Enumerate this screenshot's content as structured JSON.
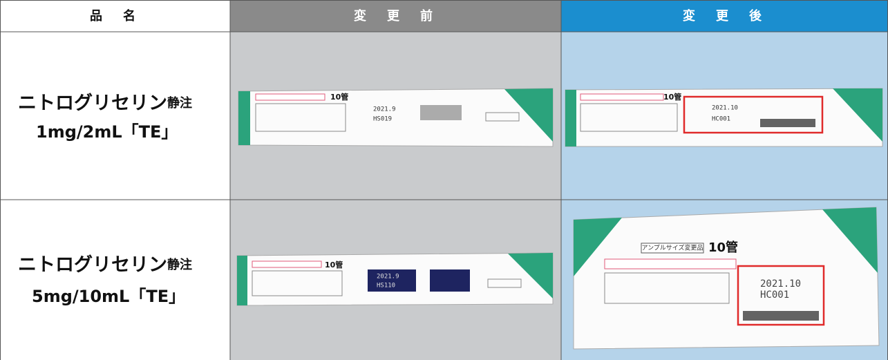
{
  "table": {
    "headers": [
      "品　名",
      "変　更　前",
      "変　更　後"
    ],
    "rows": [
      {
        "name": "ニトログリセリン",
        "suffix": "静注",
        "strength": "1mg/2mL「TE」",
        "before": {
          "count": "10管",
          "date": "2021.9",
          "lot": "HS019"
        },
        "after": {
          "count": "10管",
          "date": "2021.10",
          "lot": "HC001"
        }
      },
      {
        "name": "ニトログリセリン",
        "suffix": "静注",
        "strength": "5mg/10mL「TE」",
        "before": {
          "count": "10管",
          "date": "2021.9",
          "lot": "HS110"
        },
        "after": {
          "badge": "アンプルサイズ変更品",
          "count": "10管",
          "date": "2021.10",
          "lot": "HC001"
        }
      }
    ]
  }
}
